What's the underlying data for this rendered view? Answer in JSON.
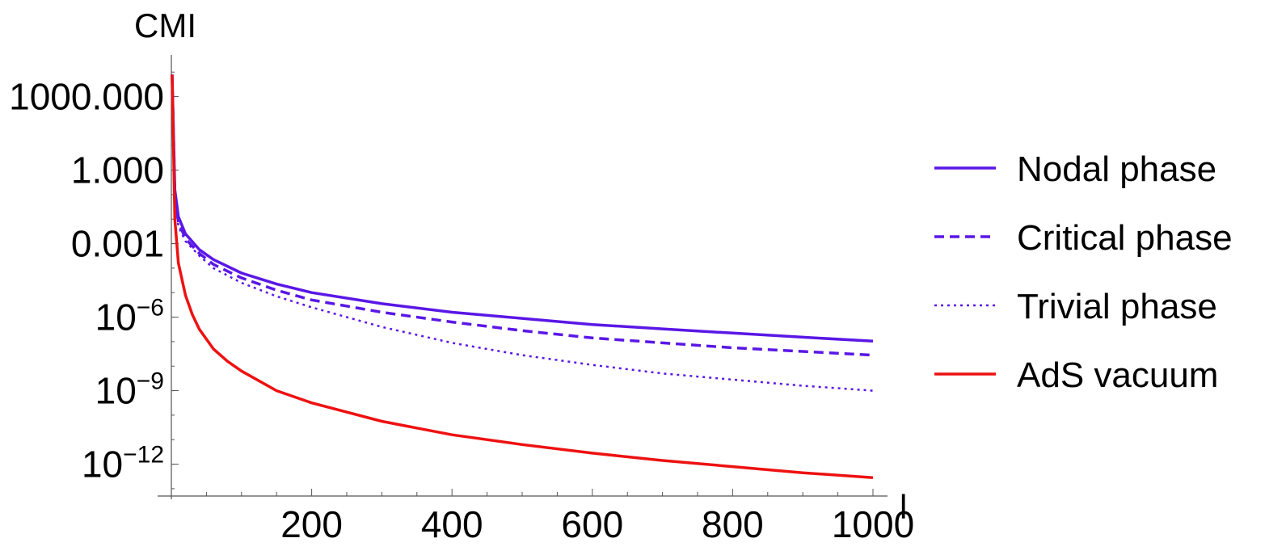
{
  "chart_data": {
    "type": "line",
    "ylabel": "CMI",
    "xlabel": "l",
    "yscale": "log",
    "xlim": [
      0,
      1000
    ],
    "ylim_log10": [
      -13.3,
      4.7
    ],
    "x_ticks": [
      200,
      400,
      600,
      800,
      1000
    ],
    "y_ticks": [
      {
        "log10": 3,
        "base": "1000.000",
        "exp": ""
      },
      {
        "log10": 0,
        "base": "1.000",
        "exp": ""
      },
      {
        "log10": -3,
        "base": "0.001",
        "exp": ""
      },
      {
        "log10": -6,
        "base": "10",
        "exp": "−6"
      },
      {
        "log10": -9,
        "base": "10",
        "exp": "−9"
      },
      {
        "log10": -12,
        "base": "10",
        "exp": "−12"
      }
    ],
    "legend_position": "right",
    "series": [
      {
        "name": "Nodal phase",
        "color": "#5a17e6",
        "style": "solid",
        "x": [
          1,
          5,
          10,
          20,
          40,
          60,
          100,
          150,
          200,
          300,
          400,
          500,
          600,
          700,
          800,
          900,
          1000
        ],
        "log10_y": [
          3.9,
          -0.8,
          -1.9,
          -2.6,
          -3.25,
          -3.65,
          -4.2,
          -4.65,
          -5.0,
          -5.45,
          -5.8,
          -6.05,
          -6.3,
          -6.48,
          -6.65,
          -6.82,
          -6.98
        ]
      },
      {
        "name": "Critical phase",
        "color": "#5a17e6",
        "style": "dashed",
        "x": [
          1,
          5,
          10,
          20,
          40,
          60,
          100,
          150,
          200,
          300,
          400,
          500,
          600,
          700,
          800,
          900,
          1000
        ],
        "log10_y": [
          3.9,
          -0.95,
          -2.1,
          -2.8,
          -3.4,
          -3.85,
          -4.4,
          -4.9,
          -5.3,
          -5.8,
          -6.2,
          -6.55,
          -6.85,
          -7.05,
          -7.25,
          -7.4,
          -7.55
        ]
      },
      {
        "name": "Trivial phase",
        "color": "#5a17e6",
        "style": "dotted",
        "x": [
          1,
          5,
          10,
          20,
          40,
          60,
          100,
          150,
          200,
          300,
          400,
          500,
          600,
          700,
          800,
          900,
          1000
        ],
        "log10_y": [
          3.9,
          -1.1,
          -2.3,
          -2.9,
          -3.5,
          -4.0,
          -4.6,
          -5.15,
          -5.6,
          -6.4,
          -7.05,
          -7.55,
          -7.95,
          -8.3,
          -8.55,
          -8.8,
          -9.0
        ]
      },
      {
        "name": "AdS vacuum",
        "color": "#ee1111",
        "style": "solid",
        "x": [
          1,
          5,
          10,
          20,
          30,
          40,
          60,
          80,
          100,
          150,
          200,
          300,
          400,
          500,
          600,
          700,
          800,
          900,
          1000
        ],
        "log10_y": [
          3.9,
          -2.0,
          -3.8,
          -5.1,
          -5.9,
          -6.5,
          -7.3,
          -7.8,
          -8.2,
          -9.0,
          -9.5,
          -10.25,
          -10.8,
          -11.2,
          -11.55,
          -11.85,
          -12.1,
          -12.35,
          -12.55
        ]
      }
    ]
  }
}
